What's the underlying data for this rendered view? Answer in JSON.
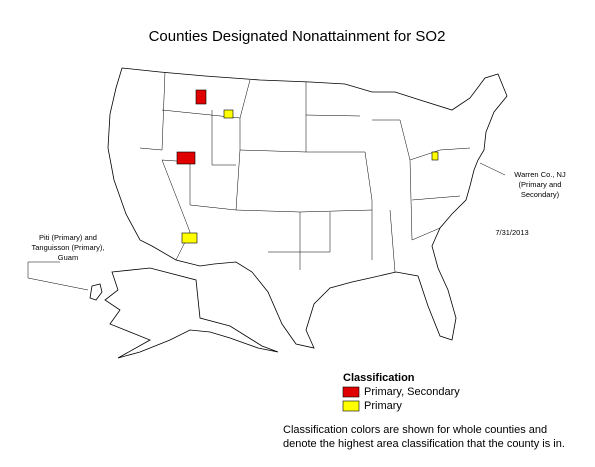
{
  "title": "Counties Designated Nonattainment for SO2",
  "annotations": {
    "warren": [
      "Warren Co., NJ",
      "(Primary and",
      "Secondary)"
    ],
    "guam": [
      "Piti (Primary) and",
      "Tanguisson (Primary),",
      "Guam"
    ],
    "date": "7/31/2013"
  },
  "legend": {
    "title": "Classification",
    "items": [
      {
        "label": "Primary, Secondary",
        "color": "#e00000"
      },
      {
        "label": "Primary",
        "color": "#ffff00"
      }
    ]
  },
  "footnote": [
    "Classification colors are shown for whole counties and",
    "denote the highest area classification that the county is in."
  ]
}
